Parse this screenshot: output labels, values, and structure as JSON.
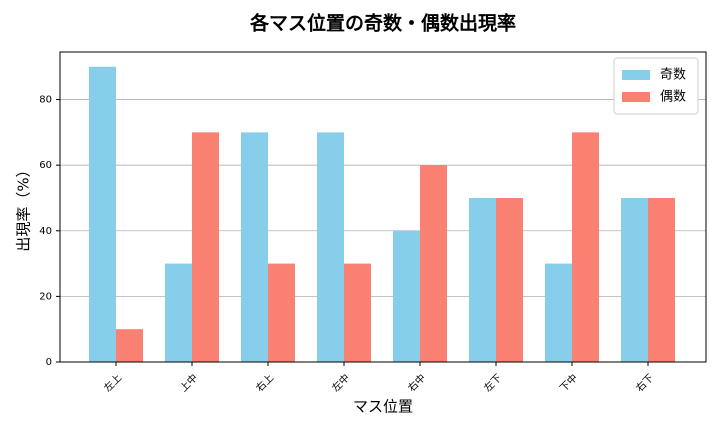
{
  "chart_data": {
    "type": "bar",
    "title": "各マス位置の奇数・偶数出現率",
    "x_label": "マス位置",
    "y_label": "出現率（%）",
    "categories": [
      "左上",
      "上中",
      "右上",
      "左中",
      "右中",
      "左下",
      "下中",
      "右下"
    ],
    "series": [
      {
        "name": "奇数",
        "color": "#87ceeb",
        "values": [
          90,
          30,
          70,
          70,
          40,
          50,
          30,
          50
        ]
      },
      {
        "name": "偶数",
        "color": "#fa8072",
        "values": [
          10,
          70,
          30,
          30,
          60,
          50,
          70,
          50
        ]
      }
    ],
    "ylim": [
      0,
      94.5
    ],
    "yticks": [
      0,
      20,
      40,
      60,
      80
    ],
    "grid": true,
    "legend": "upper right"
  }
}
